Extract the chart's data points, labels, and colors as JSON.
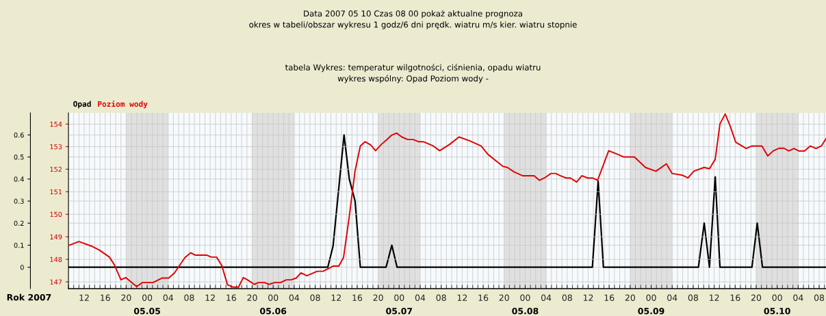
{
  "chart_data": {
    "type": "line",
    "xlabel": "Rok 2007",
    "annotations": [
      "Data 2007 05 10 Czas 08 00 pokaż aktualne prognoza",
      "okres w tabeli/obszar wykresu 1 godz/6 dni prędk. wiatru m/s kier. wiatru stopnie",
      "tabela Wykres: temperatur wilgotności, ciśnienia, opadu wiatru",
      "wykres wspólny: Opad Poziom wody -"
    ],
    "xlim": [
      "2007-05-04T09:00",
      "2007-05-10T09:18"
    ],
    "xticks": [
      {
        "value": "2007-05-04T12:00",
        "label": "12"
      },
      {
        "value": "2007-05-04T16:00",
        "label": "16"
      },
      {
        "value": "2007-05-04T20:00",
        "label": "20"
      },
      {
        "value": "2007-05-05T00:00",
        "label": "00"
      },
      {
        "value": "2007-05-05T04:00",
        "label": "04"
      },
      {
        "value": "2007-05-05T08:00",
        "label": "08"
      },
      {
        "value": "2007-05-05T12:00",
        "label": "12"
      },
      {
        "value": "2007-05-05T16:00",
        "label": "16"
      },
      {
        "value": "2007-05-05T20:00",
        "label": "20"
      },
      {
        "value": "2007-05-06T00:00",
        "label": "00"
      },
      {
        "value": "2007-05-06T04:00",
        "label": "04"
      },
      {
        "value": "2007-05-06T08:00",
        "label": "08"
      },
      {
        "value": "2007-05-06T12:00",
        "label": "12"
      },
      {
        "value": "2007-05-06T16:00",
        "label": "16"
      },
      {
        "value": "2007-05-06T20:00",
        "label": "20"
      },
      {
        "value": "2007-05-07T00:00",
        "label": "00"
      },
      {
        "value": "2007-05-07T04:00",
        "label": "04"
      },
      {
        "value": "2007-05-07T08:00",
        "label": "08"
      },
      {
        "value": "2007-05-07T12:00",
        "label": "12"
      },
      {
        "value": "2007-05-07T16:00",
        "label": "16"
      },
      {
        "value": "2007-05-07T20:00",
        "label": "20"
      },
      {
        "value": "2007-05-08T00:00",
        "label": "00"
      },
      {
        "value": "2007-05-08T04:00",
        "label": "04"
      },
      {
        "value": "2007-05-08T08:00",
        "label": "08"
      },
      {
        "value": "2007-05-08T12:00",
        "label": "12"
      },
      {
        "value": "2007-05-08T16:00",
        "label": "16"
      },
      {
        "value": "2007-05-08T20:00",
        "label": "20"
      },
      {
        "value": "2007-05-09T00:00",
        "label": "00"
      },
      {
        "value": "2007-05-09T04:00",
        "label": "04"
      },
      {
        "value": "2007-05-09T08:00",
        "label": "08"
      },
      {
        "value": "2007-05-09T12:00",
        "label": "12"
      },
      {
        "value": "2007-05-09T16:00",
        "label": "16"
      },
      {
        "value": "2007-05-09T20:00",
        "label": "20"
      },
      {
        "value": "2007-05-10T00:00",
        "label": "00"
      },
      {
        "value": "2007-05-10T04:00",
        "label": "04"
      },
      {
        "value": "2007-05-10T08:00",
        "label": "08"
      }
    ],
    "x2lim": [
      "2007-05-04T09:00",
      "2007-05-10T09:18"
    ],
    "x2ticks": [
      {
        "value": "2007-05-05",
        "label": "05.05"
      },
      {
        "value": "2007-05-06",
        "label": "05.06"
      },
      {
        "value": "2007-05-07",
        "label": "05.07"
      },
      {
        "value": "2007-05-08",
        "label": "05.08"
      },
      {
        "value": "2007-05-09",
        "label": "05.09"
      },
      {
        "value": "2007-05-10",
        "label": "05.10"
      }
    ],
    "ylim": [
      -0.097,
      0.7
    ],
    "yticks": [
      0,
      0.1,
      0.2,
      0.3,
      0.4,
      0.5,
      0.6
    ],
    "y2lim": [
      146.7,
      154.5
    ],
    "y2ticks": [
      147,
      148,
      149,
      150,
      151,
      152,
      153,
      154
    ],
    "grid": true,
    "legend": "top left",
    "marker": "none",
    "line_style": "solid",
    "bands": [
      {
        "axis": "x",
        "from": "2007-05-04T20:00",
        "to": "2007-05-05T04:00",
        "color": "#e0e0e0"
      },
      {
        "axis": "x",
        "from": "2007-05-05T20:00",
        "to": "2007-05-06T04:00",
        "color": "#e0e0e0"
      },
      {
        "axis": "x",
        "from": "2007-05-06T20:00",
        "to": "2007-05-07T04:00",
        "color": "#e0e0e0"
      },
      {
        "axis": "x",
        "from": "2007-05-07T20:00",
        "to": "2007-05-08T04:00",
        "color": "#e0e0e0"
      },
      {
        "axis": "x",
        "from": "2007-05-08T20:00",
        "to": "2007-05-09T04:00",
        "color": "#e0e0e0"
      },
      {
        "axis": "x",
        "from": "2007-05-09T20:00",
        "to": "2007-05-10T04:00",
        "color": "#e0e0e0"
      }
    ],
    "series": [
      {
        "name": "Opad",
        "color": "#000000",
        "axis": "y",
        "x": [
          "2007-05-04T09:00",
          "2007-05-06T10:24",
          "2007-05-06T11:24",
          "2007-05-06T13:30",
          "2007-05-06T14:30",
          "2007-05-06T15:36",
          "2007-05-06T16:36",
          "2007-05-06T21:30",
          "2007-05-06T22:36",
          "2007-05-06T23:36",
          "2007-05-08T12:48",
          "2007-05-08T13:54",
          "2007-05-08T14:54",
          "2007-05-09T09:00",
          "2007-05-09T10:06",
          "2007-05-09T11:06",
          "2007-05-09T12:12",
          "2007-05-09T13:06",
          "2007-05-09T19:12",
          "2007-05-09T20:12",
          "2007-05-09T21:12",
          "2007-05-10T09:18"
        ],
        "values": [
          0,
          0,
          0.095,
          0.6,
          0.4,
          0.3,
          0,
          0,
          0.1,
          0,
          0,
          0.39,
          0,
          0,
          0.2,
          0,
          0.41,
          0,
          0,
          0.2,
          0,
          0
        ]
      },
      {
        "name": "Poziom wody",
        "color": "#e00000",
        "axis": "y2",
        "x": [
          "2007-05-04T09:00",
          "2007-05-04T11:00",
          "2007-05-04T13:21",
          "2007-05-04T14:54",
          "2007-05-04T16:48",
          "2007-05-04T17:42",
          "2007-05-04T19:00",
          "2007-05-04T19:54",
          "2007-05-04T22:00",
          "2007-05-04T23:06",
          "2007-05-05T01:06",
          "2007-05-05T02:48",
          "2007-05-05T04:06",
          "2007-05-05T05:12",
          "2007-05-05T07:12",
          "2007-05-05T08:18",
          "2007-05-05T09:06",
          "2007-05-05T11:18",
          "2007-05-05T12:12",
          "2007-05-05T13:12",
          "2007-05-05T14:12",
          "2007-05-05T15:18",
          "2007-05-05T16:18",
          "2007-05-05T17:24",
          "2007-05-05T18:18",
          "2007-05-05T19:06",
          "2007-05-05T20:24",
          "2007-05-05T21:12",
          "2007-05-05T22:24",
          "2007-05-05T23:12",
          "2007-05-06T00:18",
          "2007-05-06T01:24",
          "2007-05-06T02:30",
          "2007-05-06T03:24",
          "2007-05-06T04:24",
          "2007-05-06T05:18",
          "2007-05-06T06:24",
          "2007-05-06T08:24",
          "2007-05-06T09:30",
          "2007-05-06T10:36",
          "2007-05-06T11:24",
          "2007-05-06T12:30",
          "2007-05-06T13:24",
          "2007-05-06T14:30",
          "2007-05-06T15:36",
          "2007-05-06T16:36",
          "2007-05-06T17:30",
          "2007-05-06T18:36",
          "2007-05-06T19:30",
          "2007-05-06T20:36",
          "2007-05-06T21:36",
          "2007-05-06T22:30",
          "2007-05-06T23:30",
          "2007-05-07T00:30",
          "2007-05-07T01:36",
          "2007-05-07T02:36",
          "2007-05-07T03:42",
          "2007-05-07T04:36",
          "2007-05-07T06:30",
          "2007-05-07T07:42",
          "2007-05-07T09:36",
          "2007-05-07T11:24",
          "2007-05-07T13:30",
          "2007-05-07T15:36",
          "2007-05-07T16:54",
          "2007-05-07T18:42",
          "2007-05-07T19:48",
          "2007-05-07T20:36",
          "2007-05-07T21:54",
          "2007-05-07T23:30",
          "2007-05-08T01:42",
          "2007-05-08T02:42",
          "2007-05-08T03:48",
          "2007-05-08T04:54",
          "2007-05-08T05:48",
          "2007-05-08T06:42",
          "2007-05-08T07:48",
          "2007-05-08T08:36",
          "2007-05-08T09:48",
          "2007-05-08T10:48",
          "2007-05-08T11:54",
          "2007-05-08T12:48",
          "2007-05-08T13:48",
          "2007-05-08T15:54",
          "2007-05-08T17:18",
          "2007-05-08T18:48",
          "2007-05-08T20:48",
          "2007-05-08T22:54",
          "2007-05-09T00:54",
          "2007-05-09T02:54",
          "2007-05-09T04:00",
          "2007-05-09T06:00",
          "2007-05-09T07:00",
          "2007-05-09T08:06",
          "2007-05-09T10:06",
          "2007-05-09T11:06",
          "2007-05-09T12:12",
          "2007-05-09T13:06",
          "2007-05-09T14:06",
          "2007-05-09T15:06",
          "2007-05-09T16:06",
          "2007-05-09T18:06",
          "2007-05-09T19:12",
          "2007-05-09T21:06",
          "2007-05-09T22:12",
          "2007-05-09T23:18",
          "2007-05-10T00:24",
          "2007-05-10T01:18",
          "2007-05-10T02:12",
          "2007-05-10T03:12",
          "2007-05-10T04:06",
          "2007-05-10T05:12",
          "2007-05-10T06:18",
          "2007-05-10T07:24",
          "2007-05-10T08:24",
          "2007-05-10T09:18"
        ],
        "values": [
          148.61,
          148.79,
          148.59,
          148.41,
          148.1,
          147.78,
          147.09,
          147.19,
          146.79,
          146.97,
          146.97,
          147.17,
          147.17,
          147.4,
          148.08,
          148.29,
          148.19,
          148.19,
          148.1,
          148.1,
          147.73,
          146.87,
          146.77,
          146.77,
          147.19,
          147.09,
          146.89,
          146.97,
          146.97,
          146.89,
          146.97,
          146.97,
          147.09,
          147.09,
          147.17,
          147.4,
          147.27,
          147.47,
          147.47,
          147.6,
          147.7,
          147.7,
          148.08,
          149.91,
          151.93,
          153.03,
          153.22,
          153.07,
          152.82,
          153.1,
          153.3,
          153.5,
          153.6,
          153.43,
          153.32,
          153.32,
          153.22,
          153.22,
          153.03,
          152.82,
          153.1,
          153.43,
          153.25,
          153.03,
          152.66,
          152.32,
          152.12,
          152.08,
          151.88,
          151.71,
          151.71,
          151.51,
          151.63,
          151.81,
          151.81,
          151.71,
          151.61,
          151.61,
          151.43,
          151.71,
          151.61,
          151.61,
          151.51,
          152.82,
          152.69,
          152.54,
          152.54,
          152.08,
          151.91,
          152.24,
          151.81,
          151.73,
          151.61,
          151.91,
          152.08,
          152.02,
          152.44,
          154.01,
          154.45,
          153.88,
          153.2,
          152.92,
          153.03,
          153.03,
          152.59,
          152.82,
          152.93,
          152.93,
          152.81,
          152.92,
          152.81,
          152.81,
          153.03,
          152.92,
          153.03,
          153.35
        ]
      }
    ]
  }
}
